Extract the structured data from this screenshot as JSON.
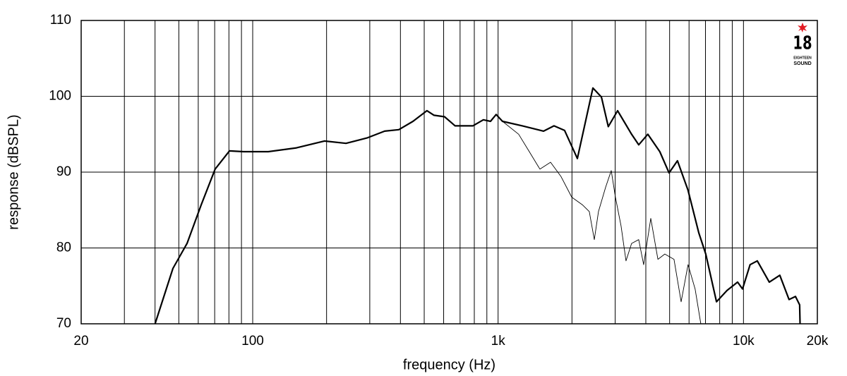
{
  "chart_data": {
    "type": "line",
    "xlabel": "frequency (Hz)",
    "ylabel": "response (dBSPL)",
    "xscale": "log",
    "grid": true,
    "xlim": [
      20,
      20000
    ],
    "ylim": [
      70,
      110
    ],
    "xticks": [
      20,
      100,
      {
        "value": 1000,
        "label": "1k"
      },
      {
        "value": 10000,
        "label": "10k"
      },
      {
        "value": 20000,
        "label": "20k"
      }
    ],
    "xgrid": [
      30,
      40,
      50,
      60,
      70,
      80,
      90,
      100,
      200,
      300,
      400,
      500,
      600,
      700,
      800,
      900,
      1000,
      2000,
      3000,
      4000,
      5000,
      6000,
      7000,
      8000,
      9000,
      10000
    ],
    "yticks": [
      70,
      80,
      90,
      100,
      110
    ],
    "logo": [
      "18",
      "EIGHTEEN",
      "SOUND"
    ],
    "series": [
      {
        "color": "#000000",
        "width": 2.2,
        "x": [
          40,
          47.3,
          54,
          61.7,
          70.3,
          80.4,
          91.8,
          115.7,
          150.8,
          196,
          240,
          292,
          345,
          394,
          450,
          513,
          548,
          605,
          668,
          789,
          871,
          931,
          982,
          1042,
          1256,
          1532,
          1690,
          1866,
          2104,
          2434,
          2637,
          2813,
          3069,
          3500,
          3741,
          4075,
          4560,
          4975,
          5383,
          5946,
          6573,
          7020,
          7760,
          8570,
          9460,
          9910,
          10640,
          11380,
          12740,
          14060,
          15340,
          16290,
          16940,
          17000
        ],
        "values": [
          70,
          77.3,
          80.6,
          85.7,
          90.4,
          92.8,
          92.7,
          92.7,
          93.2,
          94.1,
          93.8,
          94.5,
          95.4,
          95.6,
          96.7,
          98.1,
          97.5,
          97.3,
          96.1,
          96.1,
          96.9,
          96.7,
          97.6,
          96.7,
          96.1,
          95.4,
          96.1,
          95.5,
          91.8,
          101.1,
          99.9,
          96,
          98.1,
          95.0,
          93.6,
          95.0,
          92.7,
          89.9,
          91.5,
          87.6,
          82,
          79.2,
          72.9,
          74.4,
          75.5,
          74.6,
          77.8,
          78.3,
          75.5,
          76.4,
          73.2,
          73.6,
          72.5,
          70
        ]
      },
      {
        "color": "#000000",
        "width": 0.9,
        "x": [
          40,
          47.3,
          54,
          61.7,
          70.3,
          80.4,
          91.8,
          115.7,
          150.8,
          196,
          240,
          292,
          345,
          394,
          450,
          513,
          548,
          605,
          668,
          789,
          871,
          931,
          982,
          1042,
          1213,
          1340,
          1480,
          1636,
          1806,
          1996,
          2204,
          2354,
          2466,
          2565,
          2742,
          2891,
          3007,
          3171,
          3320,
          3500,
          3741,
          3920,
          4190,
          4480,
          4780,
          5210,
          5570,
          5946,
          6350,
          6700
        ],
        "values": [
          70,
          77.3,
          80.6,
          85.7,
          90.4,
          92.8,
          92.7,
          92.7,
          93.2,
          94.1,
          93.8,
          94.5,
          95.4,
          95.6,
          96.7,
          98.1,
          97.5,
          97.3,
          96.1,
          96.1,
          96.9,
          96.7,
          97.6,
          96.7,
          95.0,
          92.7,
          90.4,
          91.3,
          89.4,
          86.7,
          85.7,
          84.8,
          81.1,
          84.8,
          88.0,
          90.2,
          86.7,
          82.9,
          78.3,
          80.6,
          81.1,
          77.8,
          83.9,
          78.5,
          79.2,
          78.5,
          72.9,
          77.8,
          74.6,
          70
        ]
      }
    ]
  }
}
